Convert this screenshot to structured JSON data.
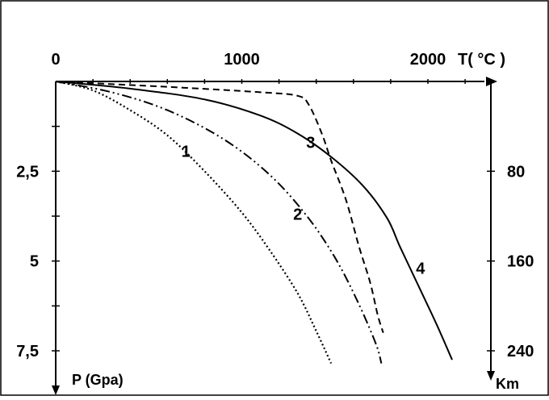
{
  "chart_data": {
    "type": "line",
    "top_axis": {
      "label": "T( °C )",
      "ticks": [
        {
          "value": 0,
          "label": "0"
        },
        {
          "value": 1000,
          "label": "1000"
        },
        {
          "value": 2000,
          "label": "2000"
        }
      ],
      "minor_step": 200,
      "range": [
        0,
        2400
      ]
    },
    "left_axis": {
      "label": "P (Gpa)",
      "ticks": [
        {
          "value": 2.5,
          "label": "2,5"
        },
        {
          "value": 5,
          "label": "5"
        },
        {
          "value": 7.5,
          "label": "7,5"
        }
      ],
      "minor_step": 1.25,
      "range": [
        0,
        8
      ]
    },
    "right_axis": {
      "label": "Km",
      "ticks": [
        {
          "value": 80,
          "label": "80"
        },
        {
          "value": 160,
          "label": "160"
        },
        {
          "value": 240,
          "label": "240"
        }
      ],
      "range": [
        0,
        256
      ]
    },
    "series": [
      {
        "label": "1",
        "style": "dotted",
        "points": [
          [
            0,
            0
          ],
          [
            200,
            0.25
          ],
          [
            400,
            0.8
          ],
          [
            600,
            1.5
          ],
          [
            800,
            2.5
          ],
          [
            1000,
            3.65
          ],
          [
            1150,
            4.7
          ],
          [
            1300,
            5.9
          ],
          [
            1400,
            6.95
          ],
          [
            1480,
            7.85
          ]
        ]
      },
      {
        "label": "2",
        "style": "dash-dot-dot",
        "points": [
          [
            0,
            0
          ],
          [
            300,
            0.3
          ],
          [
            600,
            0.8
          ],
          [
            900,
            1.6
          ],
          [
            1150,
            2.6
          ],
          [
            1350,
            3.75
          ],
          [
            1500,
            4.9
          ],
          [
            1620,
            6.1
          ],
          [
            1720,
            7.3
          ],
          [
            1750,
            7.85
          ]
        ]
      },
      {
        "label": "3",
        "style": "dashed",
        "points": [
          [
            0,
            0
          ],
          [
            600,
            0.15
          ],
          [
            1100,
            0.3
          ],
          [
            1300,
            0.4
          ],
          [
            1360,
            0.65
          ],
          [
            1430,
            1.45
          ],
          [
            1480,
            2.2
          ],
          [
            1560,
            3.3
          ],
          [
            1630,
            4.6
          ],
          [
            1690,
            5.6
          ],
          [
            1730,
            6.5
          ],
          [
            1760,
            7.0
          ]
        ]
      },
      {
        "label": "4",
        "style": "solid",
        "points": [
          [
            0,
            0
          ],
          [
            400,
            0.2
          ],
          [
            800,
            0.5
          ],
          [
            1100,
            0.95
          ],
          [
            1300,
            1.45
          ],
          [
            1480,
            2.1
          ],
          [
            1650,
            2.9
          ],
          [
            1780,
            3.8
          ],
          [
            1850,
            4.6
          ],
          [
            1950,
            5.7
          ],
          [
            2050,
            6.8
          ],
          [
            2130,
            7.75
          ]
        ]
      }
    ]
  }
}
